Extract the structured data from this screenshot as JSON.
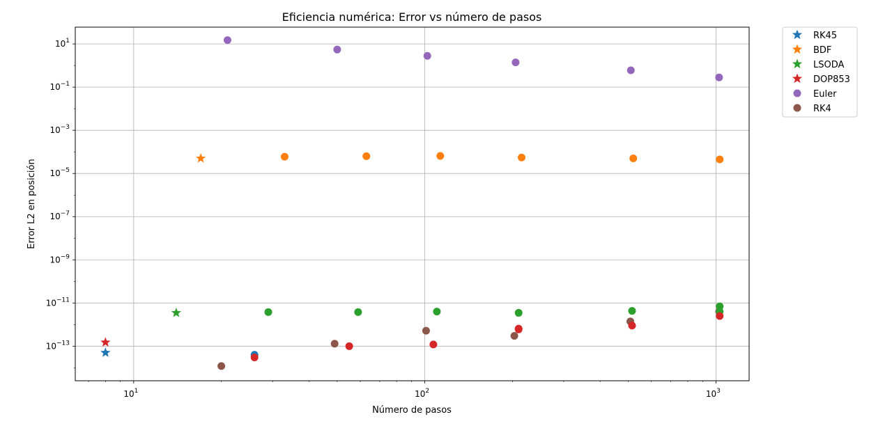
{
  "chart_data": {
    "type": "scatter",
    "title": "Eficiencia numérica: Error vs número de pasos",
    "xlabel": "Número de pasos",
    "ylabel": "Error L2 en posición",
    "xscale": "log",
    "yscale": "log",
    "xlim": [
      6.3,
      1300
    ],
    "ylim": [
      2.5e-15,
      60
    ],
    "grid": true,
    "legend_position": "outside-top-right",
    "xticks": [
      {
        "value": 10,
        "base": "10",
        "exp": "1"
      },
      {
        "value": 100,
        "base": "10",
        "exp": "2"
      },
      {
        "value": 1000,
        "base": "10",
        "exp": "3"
      }
    ],
    "yticks": [
      {
        "value": 10.0,
        "base": "10",
        "exp": "1"
      },
      {
        "value": 0.1,
        "base": "10",
        "exp": "−1"
      },
      {
        "value": 0.001,
        "base": "10",
        "exp": "−3"
      },
      {
        "value": 1e-05,
        "base": "10",
        "exp": "−5"
      },
      {
        "value": 1e-07,
        "base": "10",
        "exp": "−7"
      },
      {
        "value": 1e-09,
        "base": "10",
        "exp": "−9"
      },
      {
        "value": 1e-11,
        "base": "10",
        "exp": "−11"
      },
      {
        "value": 1e-13,
        "base": "10",
        "exp": "−13"
      }
    ],
    "series": [
      {
        "name": "RK45",
        "marker": "star",
        "color": "#1f77b4",
        "x": [
          8,
          26
        ],
        "y": [
          5e-14,
          4e-14
        ]
      },
      {
        "name": "BDF",
        "marker": "star",
        "color": "#ff7f0e",
        "x": [
          17,
          33,
          63,
          113,
          215,
          520,
          1030
        ],
        "y": [
          5e-05,
          6e-05,
          6.3e-05,
          6.5e-05,
          5.5e-05,
          5e-05,
          4.5e-05
        ]
      },
      {
        "name": "LSODA",
        "marker": "star",
        "color": "#2ca02c",
        "x": [
          14,
          29,
          59,
          110,
          210,
          515,
          1030,
          1030
        ],
        "y": [
          3.5e-12,
          3.8e-12,
          3.8e-12,
          4e-12,
          3.5e-12,
          4.3e-12,
          7e-12,
          4e-12
        ]
      },
      {
        "name": "DOP853",
        "marker": "star",
        "color": "#d62728",
        "x": [
          8,
          26,
          55,
          107,
          210,
          210,
          515,
          1030
        ],
        "y": [
          1.5e-13,
          3e-14,
          1e-13,
          1.2e-13,
          6e-13,
          6.5e-13,
          9e-13,
          2.5e-12
        ]
      },
      {
        "name": "Euler",
        "marker": "circle",
        "color": "#9467bd",
        "x": [
          21,
          50,
          102,
          205,
          510,
          1025
        ],
        "y": [
          15,
          5.5,
          2.8,
          1.4,
          0.6,
          0.28
        ]
      },
      {
        "name": "RK4",
        "marker": "circle",
        "color": "#8c564b",
        "x": [
          20,
          49,
          101,
          203,
          508,
          1025
        ],
        "y": [
          1.2e-14,
          1.3e-13,
          5.2e-13,
          3e-13,
          1.4e-12,
          4e-12
        ]
      }
    ],
    "extra_points": [
      {
        "series": "RK45",
        "marker": "circle",
        "x": 26,
        "y": 4e-14
      },
      {
        "series": "BDF",
        "marker": "circle",
        "x": 33,
        "y": 6e-05
      },
      {
        "series": "LSODA",
        "marker": "circle",
        "x": 29,
        "y": 3.8e-12
      },
      {
        "series": "DOP853",
        "marker": "circle",
        "x": 26,
        "y": 3e-14
      }
    ]
  }
}
